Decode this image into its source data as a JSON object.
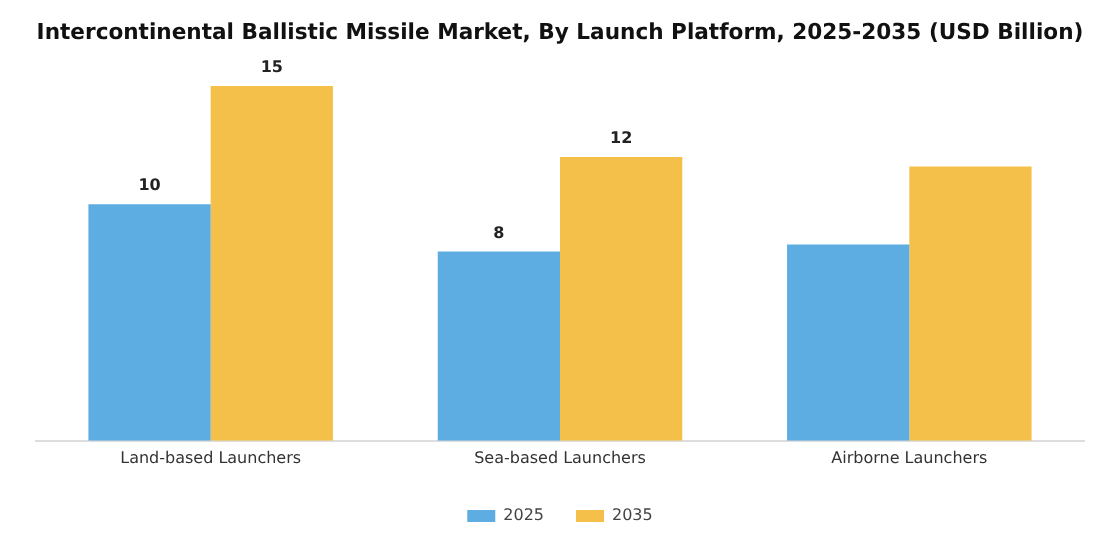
{
  "chart_data": {
    "type": "bar",
    "title": "Intercontinental Ballistic Missile Market, By Launch Platform, 2025-2035 (USD Billion)",
    "categories": [
      "Land-based Launchers",
      "Sea-based Launchers",
      "Airborne Launchers"
    ],
    "series": [
      {
        "name": "2025",
        "color": "#5dade2",
        "values": [
          10,
          8,
          8.3
        ],
        "value_labels": [
          "10",
          "8",
          null
        ]
      },
      {
        "name": "2035",
        "color": "#f5c04a",
        "values": [
          15,
          12,
          11.6
        ],
        "value_labels": [
          "15",
          "12",
          null
        ]
      }
    ],
    "legend": "bottom",
    "grid": false,
    "tick_labels": "x"
  }
}
